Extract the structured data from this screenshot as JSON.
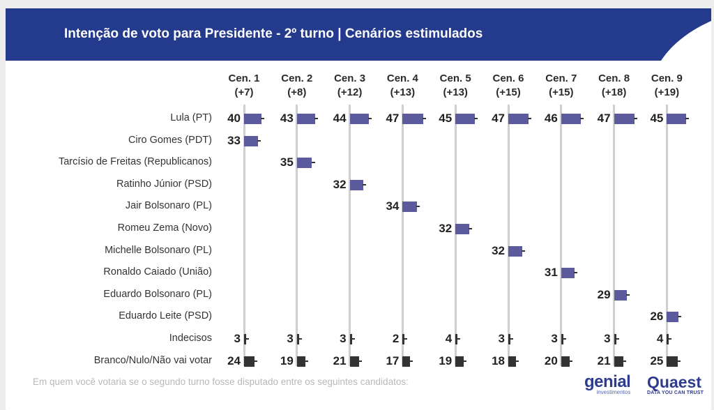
{
  "header": {
    "title": "Intenção de voto para Presidente - 2º turno | Cenários estimulados"
  },
  "colors": {
    "banner": "#243a8c",
    "bar": "#5b5a9c",
    "bar_minor": "#333333",
    "grid": "#cfcfcf"
  },
  "chart_data": {
    "type": "bar",
    "orientation": "horizontal",
    "scenarios": [
      {
        "label": "Cen. 1",
        "diff": "(+7)"
      },
      {
        "label": "Cen. 2",
        "diff": "(+8)"
      },
      {
        "label": "Cen. 3",
        "diff": "(+12)"
      },
      {
        "label": "Cen. 4",
        "diff": "(+13)"
      },
      {
        "label": "Cen. 5",
        "diff": "(+13)"
      },
      {
        "label": "Cen. 6",
        "diff": "(+15)"
      },
      {
        "label": "Cen. 7",
        "diff": "(+15)"
      },
      {
        "label": "Cen. 8",
        "diff": "(+18)"
      },
      {
        "label": "Cen. 9",
        "diff": "(+19)"
      }
    ],
    "rows": [
      {
        "label": "Lula (PT)",
        "values": [
          40,
          43,
          44,
          47,
          45,
          47,
          46,
          47,
          45
        ]
      },
      {
        "label": "Ciro Gomes (PDT)",
        "values": [
          33,
          null,
          null,
          null,
          null,
          null,
          null,
          null,
          null
        ]
      },
      {
        "label": "Tarcísio de Freitas (Republicanos)",
        "values": [
          null,
          35,
          null,
          null,
          null,
          null,
          null,
          null,
          null
        ]
      },
      {
        "label": "Ratinho Júnior (PSD)",
        "values": [
          null,
          null,
          32,
          null,
          null,
          null,
          null,
          null,
          null
        ]
      },
      {
        "label": "Jair Bolsonaro (PL)",
        "values": [
          null,
          null,
          null,
          34,
          null,
          null,
          null,
          null,
          null
        ]
      },
      {
        "label": "Romeu Zema (Novo)",
        "values": [
          null,
          null,
          null,
          null,
          32,
          null,
          null,
          null,
          null
        ]
      },
      {
        "label": "Michelle Bolsonaro (PL)",
        "values": [
          null,
          null,
          null,
          null,
          null,
          32,
          null,
          null,
          null
        ]
      },
      {
        "label": "Ronaldo Caiado (União)",
        "values": [
          null,
          null,
          null,
          null,
          null,
          null,
          31,
          null,
          null
        ]
      },
      {
        "label": "Eduardo Bolsonaro (PL)",
        "values": [
          null,
          null,
          null,
          null,
          null,
          null,
          null,
          29,
          null
        ]
      },
      {
        "label": "Eduardo Leite (PSD)",
        "values": [
          null,
          null,
          null,
          null,
          null,
          null,
          null,
          null,
          26
        ]
      },
      {
        "label": "Indecisos",
        "values": [
          3,
          3,
          3,
          2,
          4,
          3,
          3,
          3,
          4
        ]
      },
      {
        "label": "Branco/Nulo/Não vai votar",
        "values": [
          24,
          19,
          21,
          17,
          19,
          18,
          20,
          21,
          25
        ]
      }
    ]
  },
  "footer": {
    "note": "Em quem você votaria se o segundo turno fosse disputado entre os seguintes candidatos:",
    "logo_genial": "genial",
    "logo_genial_sub": "investimentos",
    "logo_quaest": "Quaest",
    "logo_quaest_sub": "DATA YOU CAN TRUST"
  }
}
